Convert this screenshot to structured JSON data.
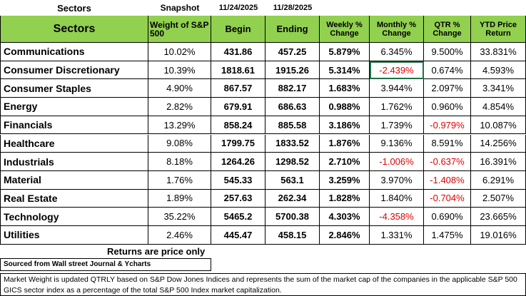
{
  "top": {
    "title": "Sectors",
    "label": "Snapshot",
    "begin_date": "11/24/2025",
    "end_date": "11/28/2025"
  },
  "table": {
    "columns": [
      "Sectors",
      "Weight of S&P 500",
      "Begin",
      "Ending",
      "Weekly % Change",
      "Monthly % Change",
      "QTR % Change",
      "YTD Price Return"
    ],
    "rows": [
      [
        "Communications",
        "10.02%",
        "431.86",
        "457.25",
        "5.879%",
        "6.345%",
        "9.500%",
        "33.831%"
      ],
      [
        "Consumer Discretionary",
        "10.39%",
        "1818.61",
        "1915.26",
        "5.314%",
        "-2.439%",
        "0.674%",
        "4.593%"
      ],
      [
        "Consumer Staples",
        "4.90%",
        "867.57",
        "882.17",
        "1.683%",
        "3.944%",
        "2.097%",
        "3.341%"
      ],
      [
        "Energy",
        "2.82%",
        "679.91",
        "686.63",
        "0.988%",
        "1.762%",
        "0.960%",
        "4.854%"
      ],
      [
        "Financials",
        "13.29%",
        "858.24",
        "885.58",
        "3.186%",
        "1.739%",
        "-0.979%",
        "10.087%"
      ],
      [
        "Healthcare",
        "9.08%",
        "1799.75",
        "1833.52",
        "1.876%",
        "9.136%",
        "8.591%",
        "14.256%"
      ],
      [
        "Industrials",
        "8.18%",
        "1264.26",
        "1298.52",
        "2.710%",
        "-1.006%",
        "-0.637%",
        "16.391%"
      ],
      [
        "Material",
        "1.76%",
        "545.33",
        "563.1",
        "3.259%",
        "3.970%",
        "-1.408%",
        "6.291%"
      ],
      [
        "Real Estate",
        "1.89%",
        "257.63",
        "262.34",
        "1.828%",
        "1.840%",
        "-0.704%",
        "2.507%"
      ],
      [
        "Technology",
        "35.22%",
        "5465.2",
        "5700.38",
        "4.303%",
        "-4.358%",
        "0.690%",
        "23.665%"
      ],
      [
        "Utilities",
        "2.46%",
        "445.47",
        "458.15",
        "2.846%",
        "1.331%",
        "1.475%",
        "19.016%"
      ]
    ]
  },
  "footer": {
    "returns_note": "Returns are price only",
    "source": "Sourced from Wall street Journal & Ycharts",
    "note": "Market Weight is updated QTRLY based on S&P Dow Jones Indices and represents the sum of the market cap of the companies in the applicable S&P 500 GICS sector index as a percentage of the total S&P 500 Index market capitalization."
  }
}
